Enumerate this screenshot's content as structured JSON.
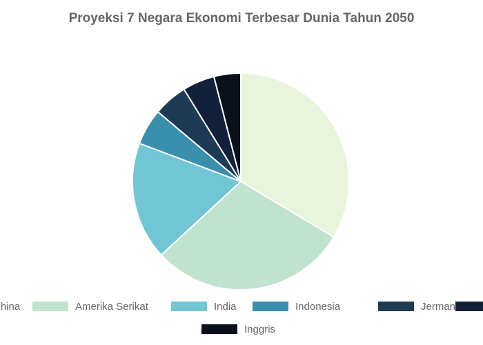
{
  "chart_data": {
    "type": "pie",
    "title": "Proyeksi 7 Negara Ekonomi Terbesar Dunia Tahun 2050",
    "categories": [
      "China",
      "Amerika Serikat",
      "India",
      "Indonesia",
      "Jerman",
      null,
      "Inggris"
    ],
    "values": [
      33.6,
      29.6,
      17.6,
      5.4,
      5.1,
      4.8,
      4.0
    ],
    "colors": [
      "#e8f4dc",
      "#c0e3cf",
      "#72c5d3",
      "#3a8fad",
      "#1e3a55",
      "#13203a",
      "#0b111c"
    ]
  }
}
